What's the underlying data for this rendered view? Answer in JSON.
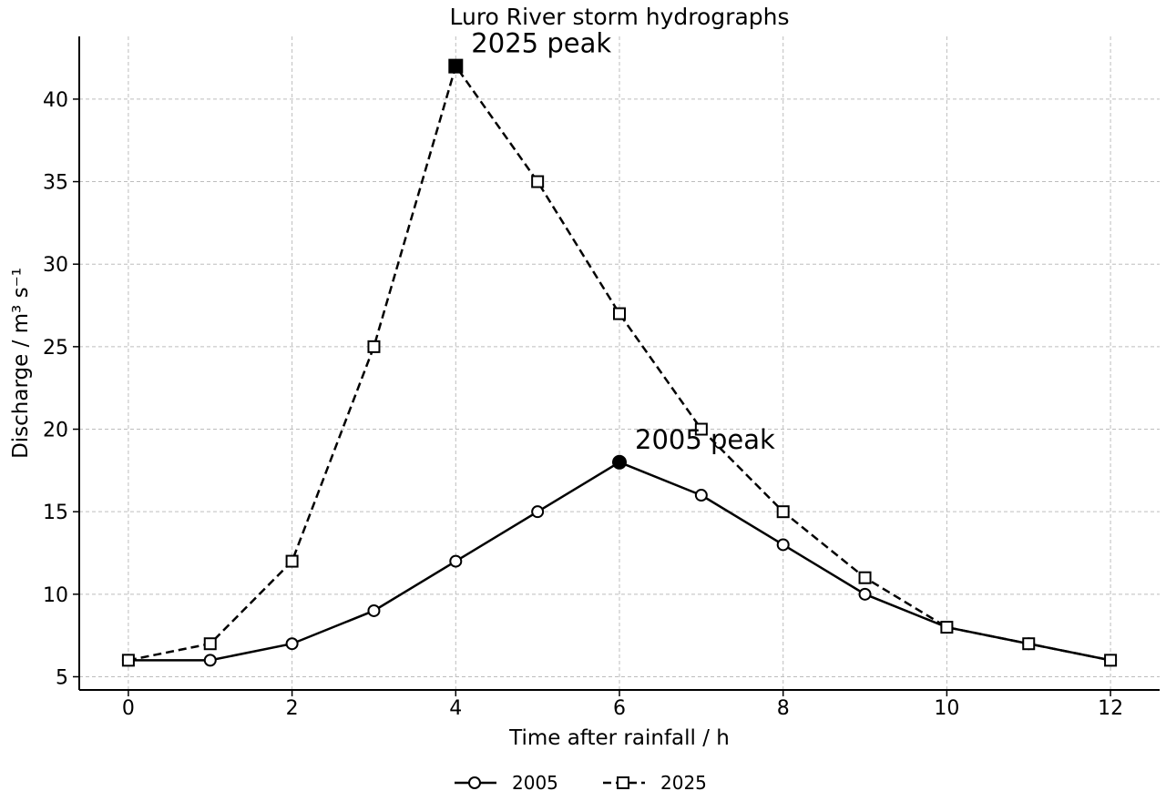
{
  "chart_data": {
    "type": "line",
    "title": "Luro River storm hydrographs",
    "xlabel": "Time after rainfall / h",
    "ylabel": "Discharge / m³ s⁻¹",
    "x": [
      0,
      1,
      2,
      3,
      4,
      5,
      6,
      7,
      8,
      9,
      10,
      11,
      12
    ],
    "xlim": [
      -0.6,
      12.6
    ],
    "ylim": [
      4.2,
      43.8
    ],
    "xticks": [
      0,
      2,
      4,
      6,
      8,
      10,
      12
    ],
    "yticks": [
      5,
      10,
      15,
      20,
      25,
      30,
      35,
      40
    ],
    "grid": true,
    "legend_position": "bottom-center",
    "series": [
      {
        "name": "2005",
        "values": [
          6,
          6,
          7,
          9,
          12,
          15,
          18,
          16,
          13,
          10,
          8,
          7,
          6
        ],
        "line_style": "solid",
        "marker": "circle",
        "color": "#000000",
        "peak": {
          "x": 6,
          "y": 18,
          "label": "2005 peak"
        }
      },
      {
        "name": "2025",
        "values": [
          6,
          7,
          12,
          25,
          42,
          35,
          27,
          20,
          15,
          11,
          8,
          7,
          6
        ],
        "line_style": "dashed",
        "marker": "square",
        "color": "#000000",
        "peak": {
          "x": 4,
          "y": 42,
          "label": "2025 peak"
        }
      }
    ]
  }
}
